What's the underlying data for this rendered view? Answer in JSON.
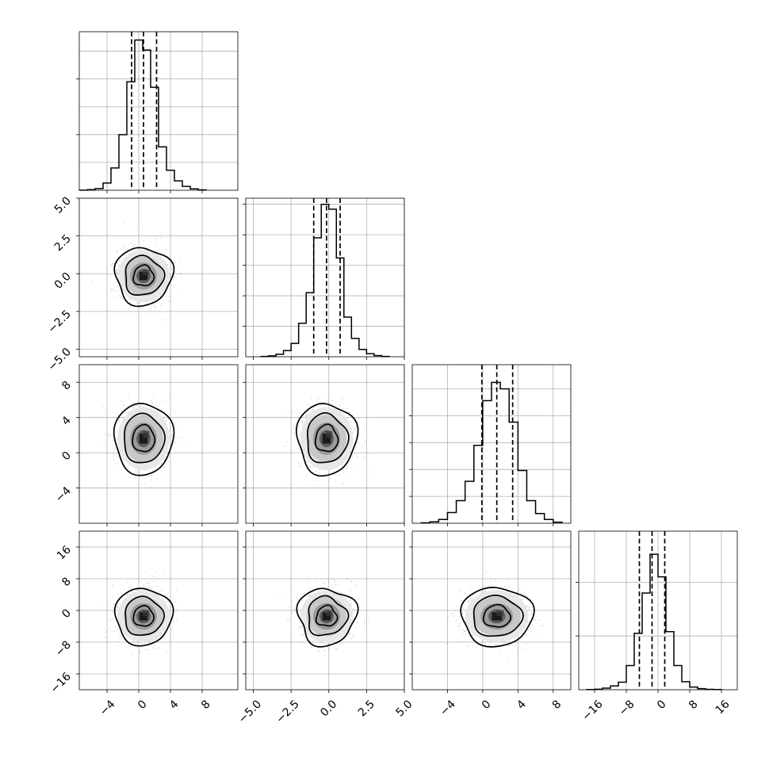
{
  "chart_data": {
    "type": "corner",
    "grid": true,
    "n_params": 4,
    "params": [
      {
        "mean": 0.6,
        "sd": 1.6,
        "range": [
          -7.5,
          12.5
        ],
        "ticks": [
          -4,
          0,
          4,
          8
        ],
        "tick_labels": [
          "−4",
          "0",
          "4",
          "8"
        ],
        "quantiles": [
          -0.9,
          0.6,
          2.25
        ]
      },
      {
        "mean": -0.15,
        "sd": 0.85,
        "range": [
          -5.5,
          5.0
        ],
        "ticks": [
          -5.0,
          -2.5,
          0.0,
          2.5,
          5.0
        ],
        "tick_labels": [
          "−5.0",
          "−2.5",
          "0.0",
          "2.5",
          "5.0"
        ],
        "quantiles": [
          -1.0,
          -0.15,
          0.75
        ]
      },
      {
        "mean": 1.6,
        "sd": 1.75,
        "range": [
          -8.0,
          10.0
        ],
        "ticks": [
          -4,
          0,
          4,
          8
        ],
        "tick_labels": [
          "−4",
          "0",
          "4",
          "8"
        ],
        "quantiles": [
          -0.1,
          1.6,
          3.4
        ]
      },
      {
        "mean": -1.5,
        "sd": 3.2,
        "range": [
          -20.0,
          20.0
        ],
        "ticks": [
          -16,
          -8,
          0,
          8,
          16
        ],
        "tick_labels": [
          "−16",
          "−8",
          "0",
          "8",
          "16"
        ],
        "quantiles": [
          -4.7,
          -1.5,
          1.7
        ]
      }
    ],
    "histograms": [
      {
        "bins": [
          -7.5,
          -6.5,
          -5.5,
          -4.5,
          -3.5,
          -2.5,
          -1.5,
          -0.5,
          0.5,
          1.5,
          2.5,
          3.5,
          4.5,
          5.5,
          6.5,
          7.5,
          8.5
        ],
        "counts": [
          0.002,
          0.01,
          0.03,
          0.13,
          0.4,
          1.0,
          1.95,
          2.7,
          2.52,
          1.85,
          0.78,
          0.36,
          0.17,
          0.07,
          0.025,
          0.008
        ],
        "ymax": 2.85,
        "y_gridlines": [
          0.5,
          1.0,
          1.5,
          2.0,
          2.5
        ],
        "y_ticks": [
          1.0,
          2.0
        ]
      },
      {
        "bins": [
          -4.5,
          -4.0,
          -3.5,
          -3.0,
          -2.5,
          -2.0,
          -1.5,
          -1.0,
          -0.5,
          0.0,
          0.5,
          1.0,
          1.5,
          2.0,
          2.5,
          3.0,
          3.5,
          4.0
        ],
        "counts": [
          0.005,
          0.015,
          0.04,
          0.1,
          0.22,
          0.55,
          1.05,
          1.95,
          2.5,
          2.42,
          1.62,
          0.65,
          0.3,
          0.12,
          0.05,
          0.02,
          0.005
        ],
        "ymax": 2.6,
        "y_gridlines": [
          0.5,
          1.0,
          1.5,
          2.0,
          2.5
        ],
        "y_ticks": [
          0.5,
          1.0,
          1.5,
          2.0,
          2.5
        ]
      },
      {
        "bins": [
          -7.0,
          -6.0,
          -5.0,
          -4.0,
          -3.0,
          -2.0,
          -1.0,
          0.0,
          1.0,
          2.0,
          3.0,
          4.0,
          5.0,
          6.0,
          7.0,
          8.0,
          9.0
        ],
        "counts": [
          0.008,
          0.025,
          0.07,
          0.2,
          0.42,
          0.78,
          1.45,
          2.28,
          2.62,
          2.5,
          1.88,
          0.98,
          0.42,
          0.18,
          0.07,
          0.02
        ],
        "ymax": 2.95,
        "y_gridlines": [
          0.5,
          1.0,
          1.5,
          2.0,
          2.5
        ],
        "y_ticks": [
          0.5,
          1.0,
          1.5,
          2.0
        ]
      },
      {
        "bins": [
          -18,
          -16,
          -14,
          -12,
          -10,
          -8,
          -6,
          -4,
          -2,
          0,
          2,
          4,
          6,
          8,
          10,
          12,
          14,
          16
        ],
        "counts": [
          0.003,
          0.01,
          0.03,
          0.07,
          0.14,
          0.45,
          1.05,
          1.8,
          2.52,
          2.1,
          1.08,
          0.45,
          0.15,
          0.05,
          0.02,
          0.007,
          0.003
        ],
        "ymax": 2.95,
        "y_gridlines": [
          1.0,
          2.0
        ],
        "y_ticks": [
          1.0,
          2.0
        ]
      }
    ],
    "pairs": [
      {
        "x": 0,
        "y": 1,
        "contour_radii": [
          0.55,
          1.05,
          1.55
        ],
        "wobble": 0.08
      },
      {
        "x": 0,
        "y": 2,
        "contour_radii": [
          0.6,
          1.1,
          1.6
        ],
        "wobble": 0.05
      },
      {
        "x": 1,
        "y": 2,
        "contour_radii": [
          0.6,
          1.1,
          1.6
        ],
        "wobble": 0.07
      },
      {
        "x": 0,
        "y": 3,
        "contour_radii": [
          0.55,
          1.05,
          1.55
        ],
        "wobble": 0.06
      },
      {
        "x": 1,
        "y": 3,
        "contour_radii": [
          0.55,
          1.05,
          1.55
        ],
        "wobble": 0.1
      },
      {
        "x": 2,
        "y": 3,
        "contour_radii": [
          0.6,
          1.1,
          1.6
        ],
        "wobble": 0.06
      }
    ]
  }
}
